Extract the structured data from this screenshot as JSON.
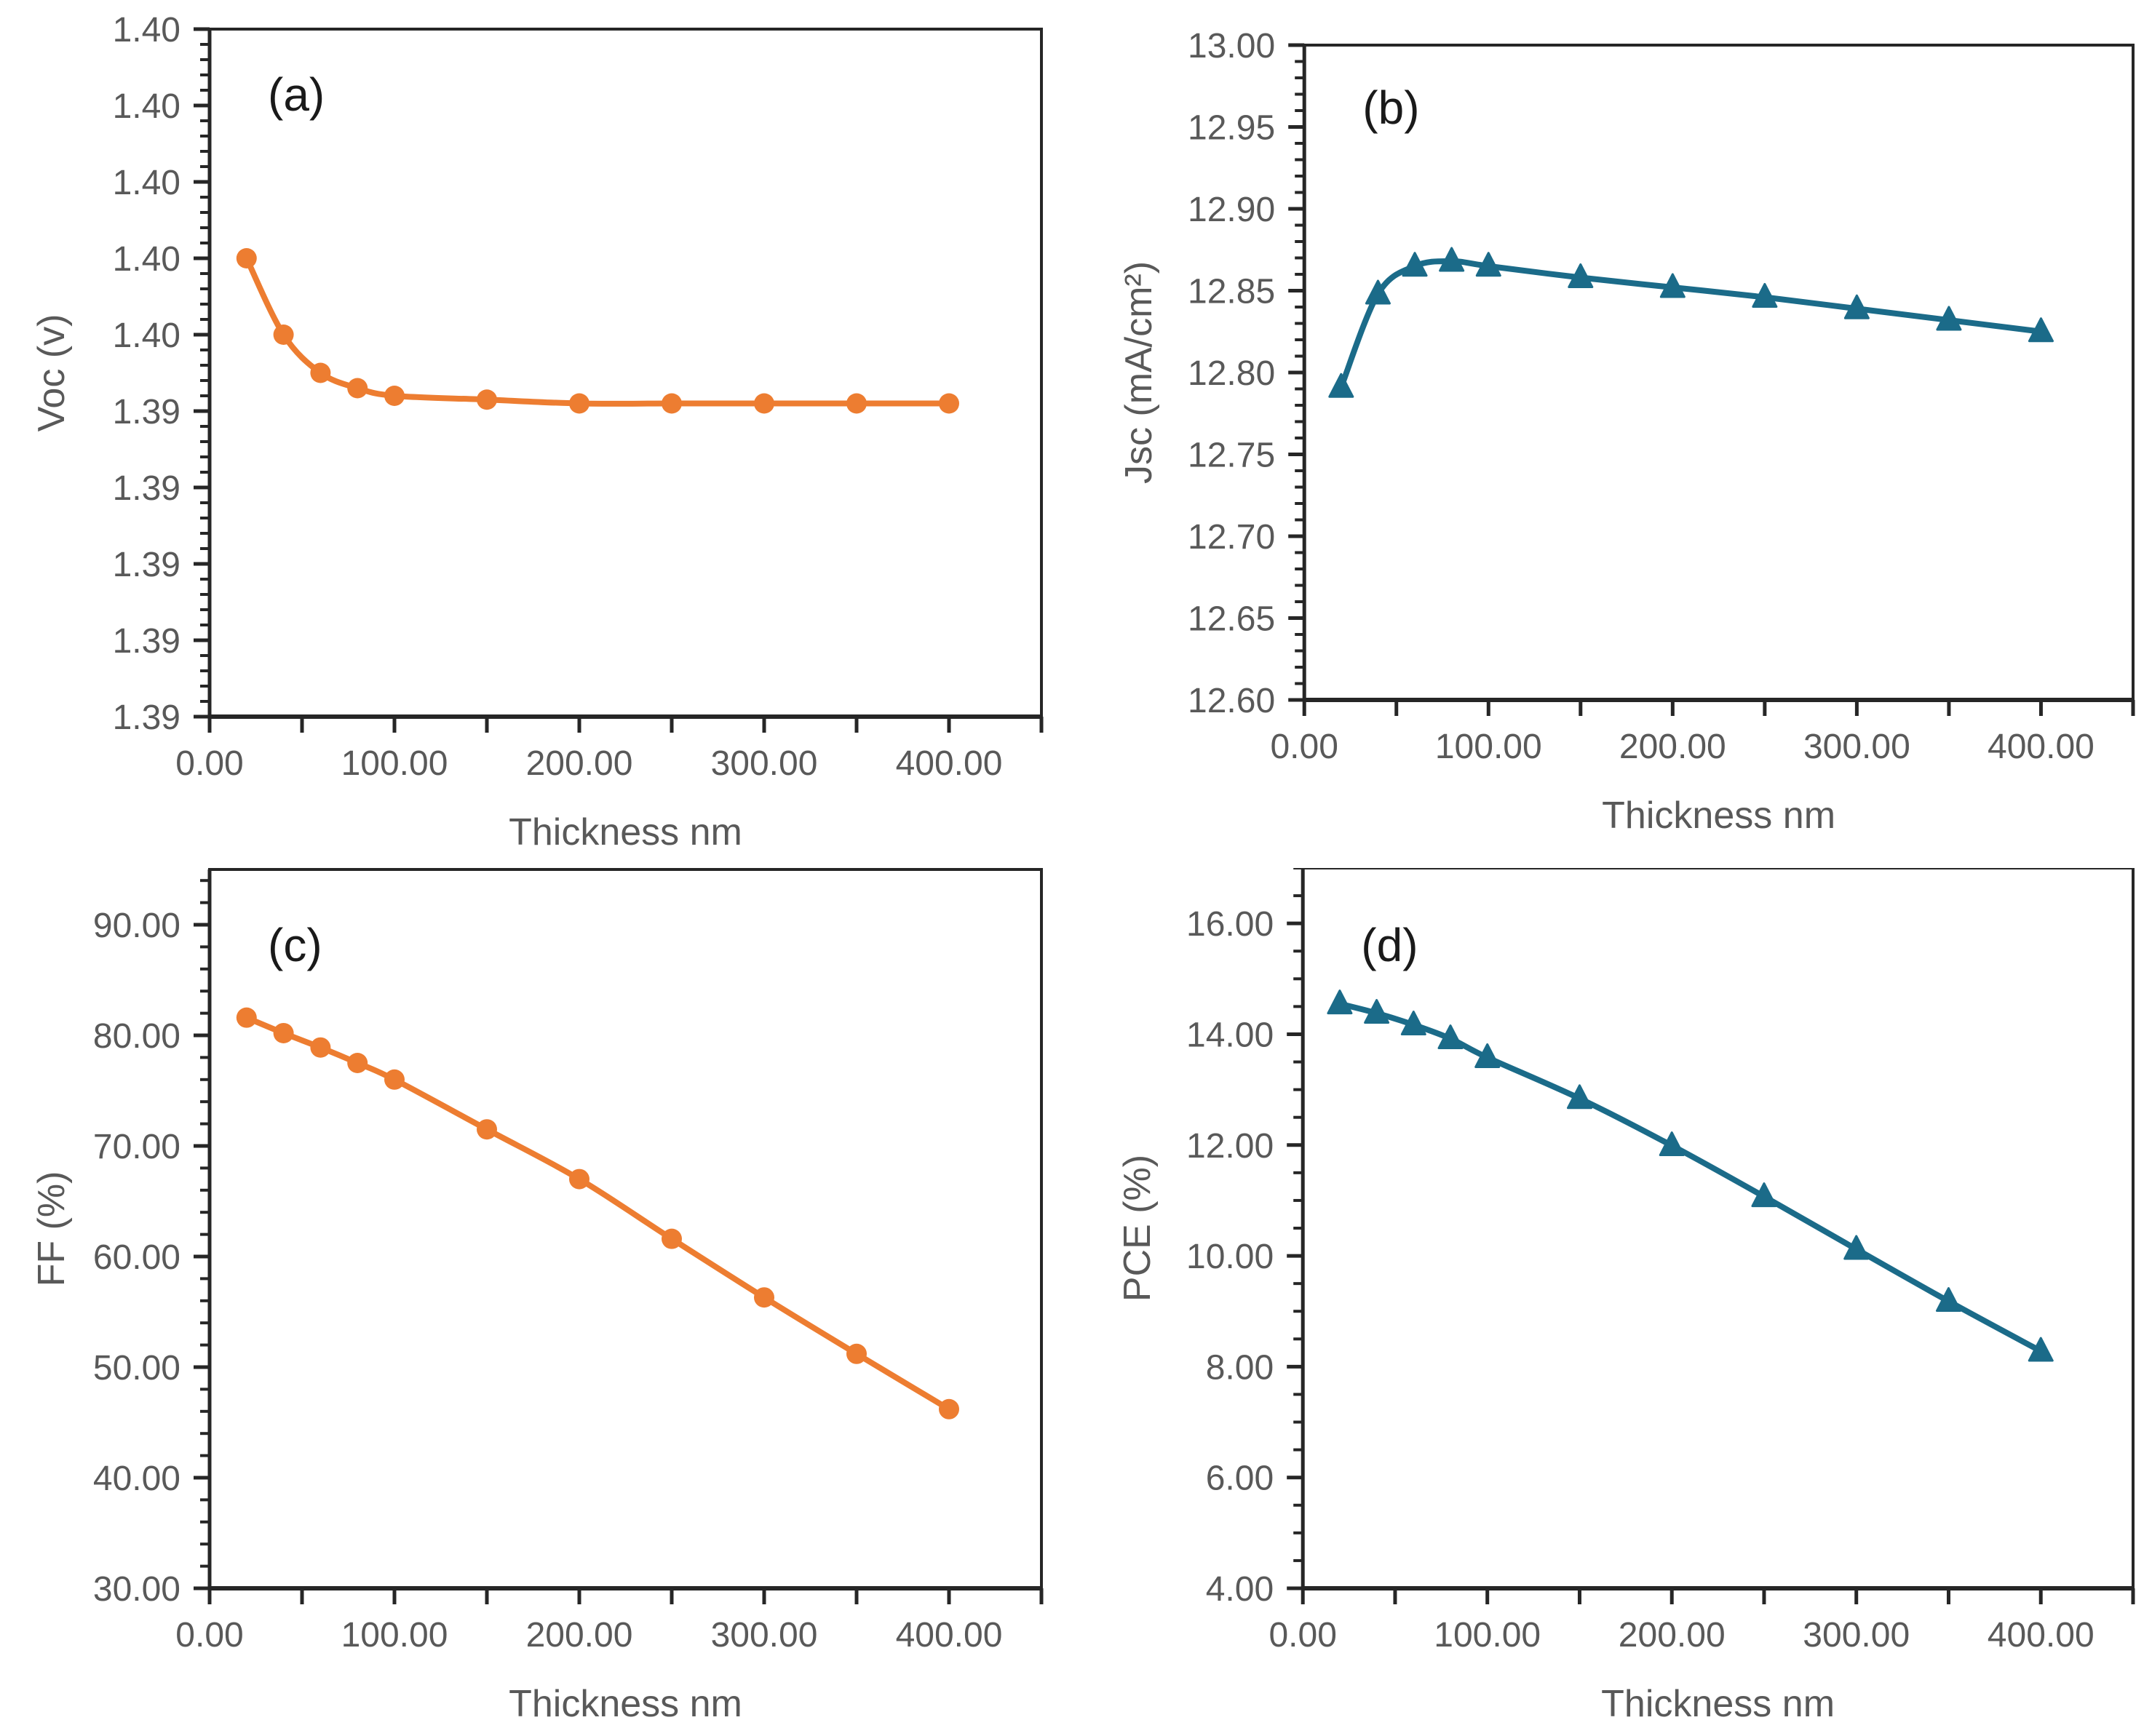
{
  "figure": {
    "background": "#ffffff",
    "label_color": "#595959",
    "axis_color": "#262626",
    "accent_orange": "#ED7D31",
    "accent_teal": "#1B6B89"
  },
  "chart_data": [
    {
      "id": "a",
      "type": "line",
      "panel_label": "(a)",
      "series_name": "Voc",
      "marker": "circle",
      "color": "#ED7D31",
      "grid": false,
      "legend": null,
      "xlabel": "Thickness nm",
      "ylabel": "Voc (v)",
      "xlim": [
        0,
        450
      ],
      "ylim": [
        1.385,
        1.403
      ],
      "x_major_tick_step": 50,
      "x_tick_labels": [
        {
          "v": 0,
          "label": "0.00"
        },
        {
          "v": 100,
          "label": "100.00"
        },
        {
          "v": 200,
          "label": "200.00"
        },
        {
          "v": 300,
          "label": "300.00"
        },
        {
          "v": 400,
          "label": "400.00"
        }
      ],
      "y_ticks": [
        {
          "v": 1.403,
          "label": "1.40"
        },
        {
          "v": 1.401,
          "label": "1.40"
        },
        {
          "v": 1.399,
          "label": "1.40"
        },
        {
          "v": 1.397,
          "label": "1.40"
        },
        {
          "v": 1.395,
          "label": "1.40"
        },
        {
          "v": 1.393,
          "label": "1.39"
        },
        {
          "v": 1.391,
          "label": "1.39"
        },
        {
          "v": 1.389,
          "label": "1.39"
        },
        {
          "v": 1.387,
          "label": "1.39"
        },
        {
          "v": 1.385,
          "label": "1.39"
        }
      ],
      "y_minor_step": 0.0004,
      "x": [
        20,
        40,
        60,
        80,
        100,
        150,
        200,
        250,
        300,
        350,
        400
      ],
      "y": [
        1.397,
        1.395,
        1.394,
        1.3936,
        1.3934,
        1.3933,
        1.3932,
        1.3932,
        1.3932,
        1.3932,
        1.3932
      ]
    },
    {
      "id": "b",
      "type": "line",
      "panel_label": "(b)",
      "series_name": "Jsc",
      "marker": "triangle",
      "color": "#1B6B89",
      "grid": false,
      "legend": null,
      "xlabel": "Thickness nm",
      "ylabel": "Jsc (mA/cm²)",
      "xlim": [
        0,
        450
      ],
      "ylim": [
        12.6,
        13.0
      ],
      "x_major_tick_step": 50,
      "x_tick_labels": [
        {
          "v": 0,
          "label": "0.00"
        },
        {
          "v": 100,
          "label": "100.00"
        },
        {
          "v": 200,
          "label": "200.00"
        },
        {
          "v": 300,
          "label": "300.00"
        },
        {
          "v": 400,
          "label": "400.00"
        }
      ],
      "y_ticks": [
        {
          "v": 13.0,
          "label": "13.00"
        },
        {
          "v": 12.95,
          "label": "12.95"
        },
        {
          "v": 12.9,
          "label": "12.90"
        },
        {
          "v": 12.85,
          "label": "12.85"
        },
        {
          "v": 12.8,
          "label": "12.80"
        },
        {
          "v": 12.75,
          "label": "12.75"
        },
        {
          "v": 12.7,
          "label": "12.70"
        },
        {
          "v": 12.65,
          "label": "12.65"
        },
        {
          "v": 12.6,
          "label": "12.60"
        }
      ],
      "y_minor_step": 0.01,
      "x": [
        20,
        40,
        60,
        80,
        100,
        150,
        200,
        250,
        300,
        350,
        400
      ],
      "y": [
        12.791,
        12.848,
        12.865,
        12.868,
        12.865,
        12.858,
        12.852,
        12.846,
        12.839,
        12.832,
        12.825
      ]
    },
    {
      "id": "c",
      "type": "line",
      "panel_label": "(c)",
      "series_name": "FF",
      "marker": "circle",
      "color": "#ED7D31",
      "grid": false,
      "legend": null,
      "xlabel": "Thickness nm",
      "ylabel": "FF (%)",
      "xlim": [
        0,
        450
      ],
      "ylim": [
        30,
        95
      ],
      "x_major_tick_step": 50,
      "x_tick_labels": [
        {
          "v": 0,
          "label": "0.00"
        },
        {
          "v": 100,
          "label": "100.00"
        },
        {
          "v": 200,
          "label": "200.00"
        },
        {
          "v": 300,
          "label": "300.00"
        },
        {
          "v": 400,
          "label": "400.00"
        }
      ],
      "y_ticks": [
        {
          "v": 90,
          "label": "90.00"
        },
        {
          "v": 80,
          "label": "80.00"
        },
        {
          "v": 70,
          "label": "70.00"
        },
        {
          "v": 60,
          "label": "60.00"
        },
        {
          "v": 50,
          "label": "50.00"
        },
        {
          "v": 40,
          "label": "40.00"
        },
        {
          "v": 30,
          "label": "30.00"
        }
      ],
      "y_minor_step": 2,
      "x": [
        20,
        40,
        60,
        80,
        100,
        150,
        200,
        250,
        300,
        350,
        400
      ],
      "y": [
        81.6,
        80.2,
        78.9,
        77.5,
        76.0,
        71.5,
        67.0,
        61.6,
        56.3,
        51.2,
        46.2
      ]
    },
    {
      "id": "d",
      "type": "line",
      "panel_label": "(d)",
      "series_name": "PCE",
      "marker": "triangle",
      "color": "#1B6B89",
      "grid": false,
      "legend": null,
      "xlabel": "Thickness nm",
      "ylabel": "PCE (%)",
      "xlim": [
        0,
        450
      ],
      "ylim": [
        4,
        17
      ],
      "x_major_tick_step": 50,
      "x_tick_labels": [
        {
          "v": 0,
          "label": "0.00"
        },
        {
          "v": 100,
          "label": "100.00"
        },
        {
          "v": 200,
          "label": "200.00"
        },
        {
          "v": 300,
          "label": "300.00"
        },
        {
          "v": 400,
          "label": "400.00"
        }
      ],
      "y_ticks": [
        {
          "v": 16,
          "label": "16.00"
        },
        {
          "v": 14,
          "label": "14.00"
        },
        {
          "v": 12,
          "label": "12.00"
        },
        {
          "v": 10,
          "label": "10.00"
        },
        {
          "v": 8,
          "label": "8.00"
        },
        {
          "v": 6,
          "label": "6.00"
        },
        {
          "v": 4,
          "label": "4.00"
        }
      ],
      "y_minor_step": 0.5,
      "x": [
        20,
        40,
        60,
        80,
        100,
        150,
        200,
        250,
        300,
        350,
        400
      ],
      "y": [
        14.55,
        14.38,
        14.17,
        13.92,
        13.58,
        12.84,
        11.99,
        11.07,
        10.12,
        9.18,
        8.28
      ]
    }
  ]
}
